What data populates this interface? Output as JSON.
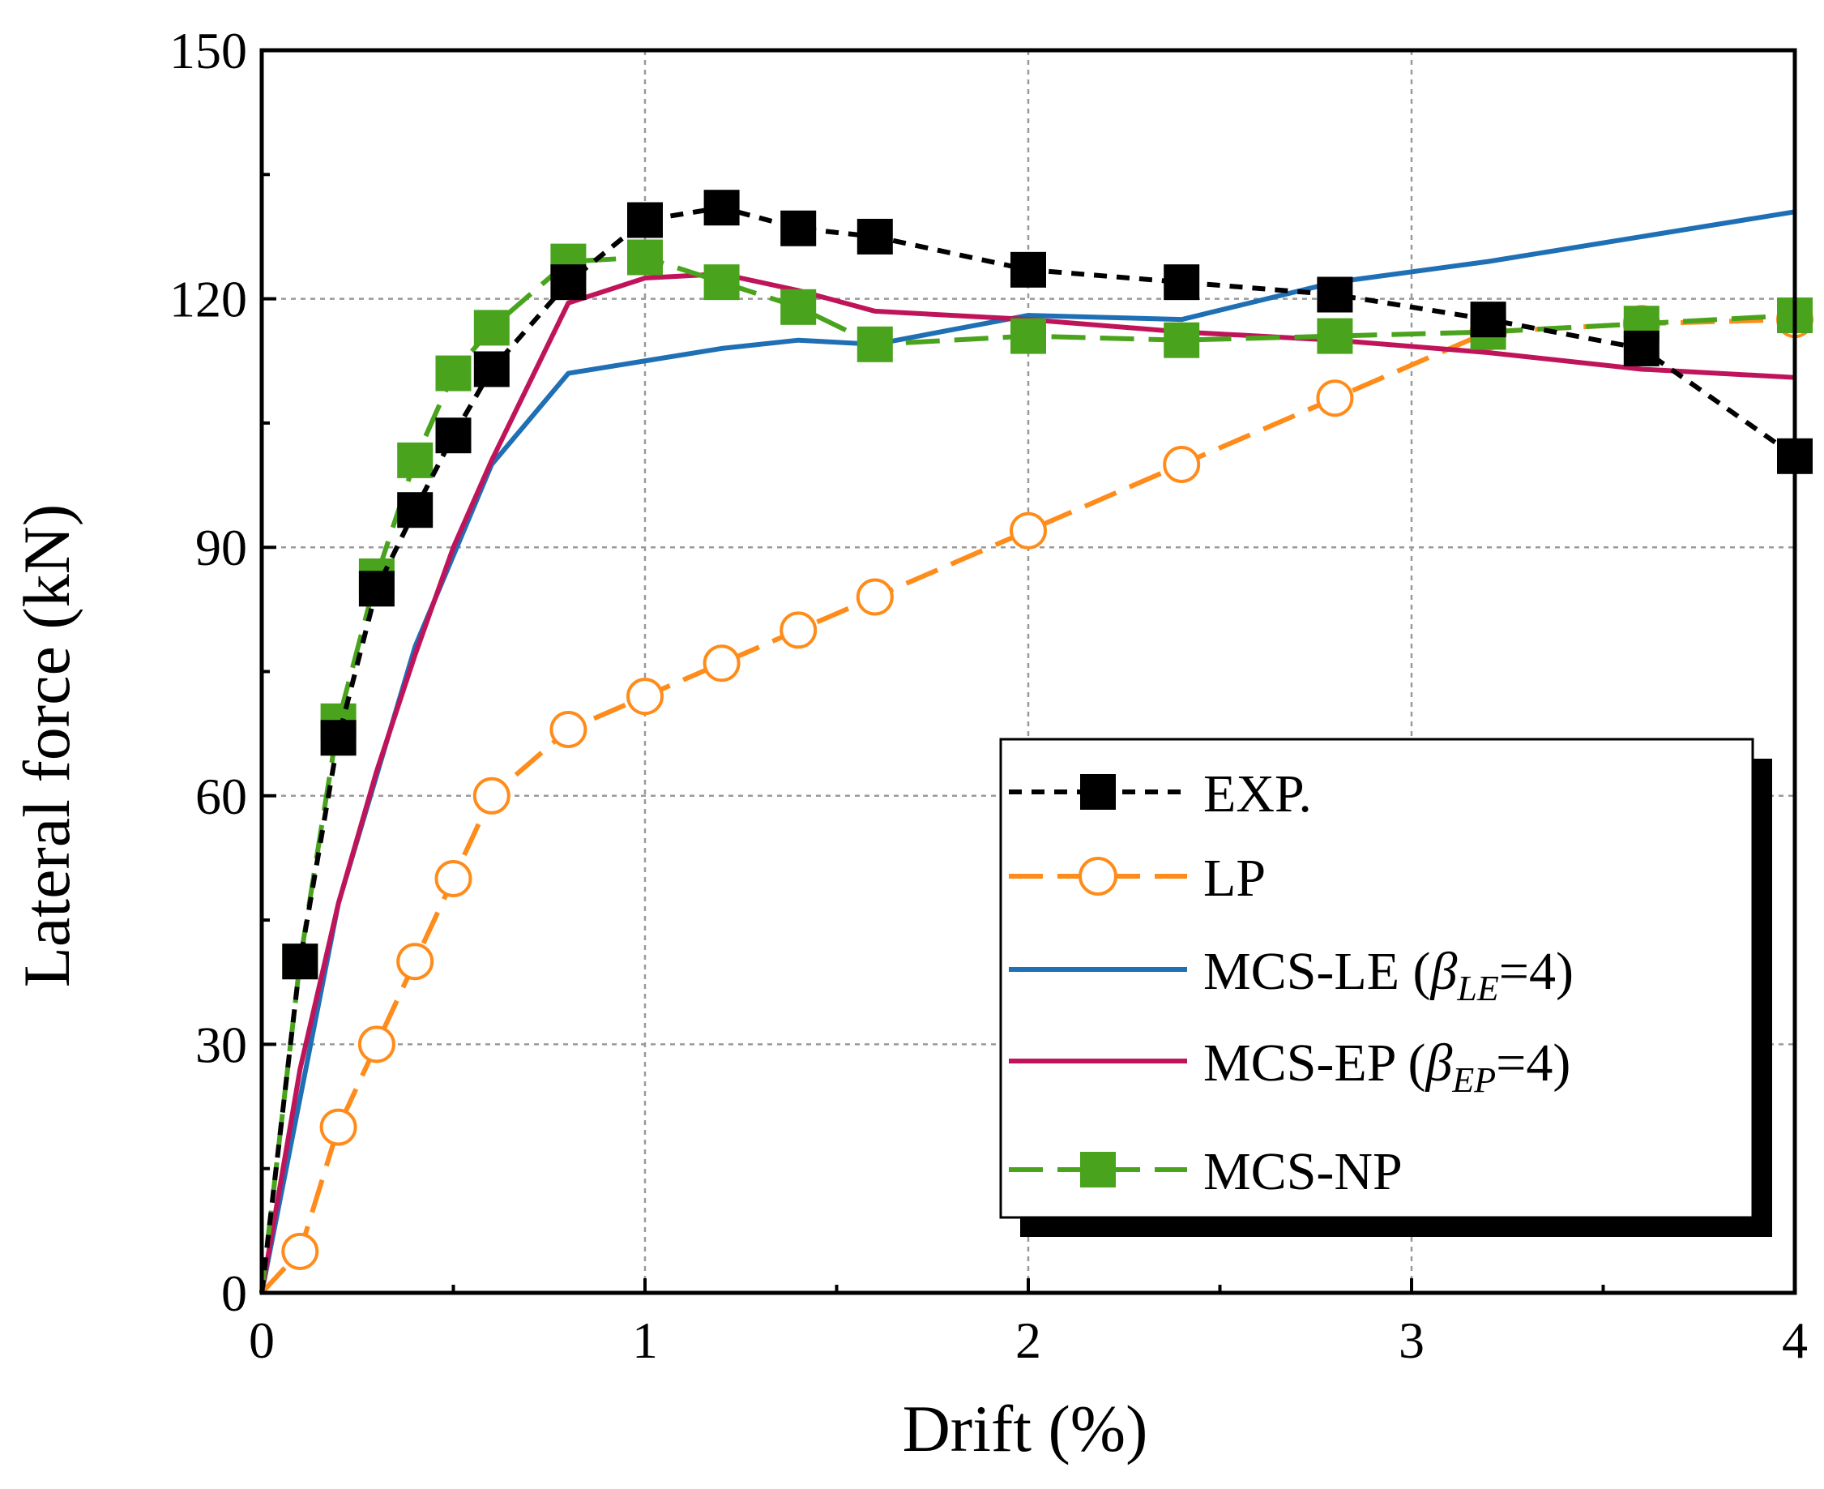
{
  "chart_data": {
    "type": "line",
    "title": "",
    "xlabel": "Drift (%)",
    "ylabel": "Lateral force (kN)",
    "xlim": [
      0,
      4
    ],
    "ylim": [
      0,
      150
    ],
    "xticks": [
      0,
      1,
      2,
      3,
      4
    ],
    "yticks": [
      0,
      30,
      60,
      90,
      120,
      150
    ],
    "xtick_labels": [
      "0",
      "1",
      "2",
      "3",
      "4"
    ],
    "ytick_labels": [
      "0",
      "30",
      "60",
      "90",
      "120",
      "150"
    ],
    "grid": true,
    "legend_position": "bottom-right",
    "series": [
      {
        "name": "EXP.",
        "legend_label": "EXP.",
        "color": "#000000",
        "line_style": "dashed",
        "marker": "square-filled",
        "x": [
          0,
          0.1,
          0.2,
          0.3,
          0.4,
          0.5,
          0.6,
          0.8,
          1.0,
          1.2,
          1.4,
          1.6,
          2.0,
          2.4,
          2.8,
          3.2,
          3.6,
          4.0
        ],
        "y": [
          0,
          40,
          67,
          85,
          94.5,
          103.5,
          111.5,
          122,
          129.5,
          131,
          128.5,
          127.5,
          123.5,
          122,
          120.5,
          117.5,
          114,
          101
        ]
      },
      {
        "name": "LP",
        "legend_label": "LP",
        "color": "#ff8c1a",
        "line_style": "dash-long",
        "marker": "circle-open",
        "x": [
          0,
          0.1,
          0.2,
          0.3,
          0.4,
          0.5,
          0.6,
          0.8,
          1.0,
          1.2,
          1.4,
          1.6,
          2.0,
          2.4,
          2.8,
          3.2,
          3.6,
          4.0
        ],
        "y": [
          0,
          5,
          20,
          30,
          40,
          50,
          60,
          68,
          72,
          76,
          80,
          84,
          92,
          100,
          108,
          116,
          117,
          117.5
        ]
      },
      {
        "name": "MCS-LE",
        "legend_label": "MCS-LE (",
        "legend_sub": "LE",
        "legend_tail": "=4)",
        "color": "#1f6fb5",
        "line_style": "solid",
        "marker": "none",
        "x": [
          0,
          0.2,
          0.4,
          0.6,
          0.8,
          1.0,
          1.2,
          1.4,
          1.6,
          2.0,
          2.4,
          2.8,
          3.2,
          3.6,
          4.0
        ],
        "y": [
          0,
          47,
          78,
          100,
          111,
          112.5,
          114,
          115,
          114.5,
          118,
          117.5,
          122,
          124.5,
          127.5,
          130.5
        ]
      },
      {
        "name": "MCS-EP",
        "legend_label": "MCS-EP (",
        "legend_sub": "EP",
        "legend_tail": "=4)",
        "color": "#c0145a",
        "line_style": "solid",
        "marker": "none",
        "x": [
          0,
          0.1,
          0.2,
          0.3,
          0.4,
          0.5,
          0.6,
          0.8,
          1.0,
          1.2,
          1.4,
          1.6,
          2.0,
          2.4,
          2.8,
          3.2,
          3.6,
          4.0
        ],
        "y": [
          0,
          27,
          47,
          63,
          77,
          90,
          100.5,
          119.5,
          122.5,
          123,
          121,
          118.5,
          117.5,
          116,
          115,
          113.5,
          111.5,
          110.5
        ]
      },
      {
        "name": "MCS-NP",
        "legend_label": "MCS-NP",
        "color": "#4aa31c",
        "line_style": "dash-long",
        "marker": "square-filled",
        "x": [
          0,
          0.1,
          0.2,
          0.3,
          0.4,
          0.5,
          0.6,
          0.8,
          1.0,
          1.2,
          1.4,
          1.6,
          2.0,
          2.4,
          2.8,
          3.2,
          3.6,
          4.0
        ],
        "y": [
          0,
          40,
          69,
          86.5,
          100.5,
          111,
          116.5,
          124.5,
          125,
          122,
          119,
          114.5,
          115.5,
          115,
          115.5,
          116,
          117,
          118
        ]
      }
    ]
  }
}
